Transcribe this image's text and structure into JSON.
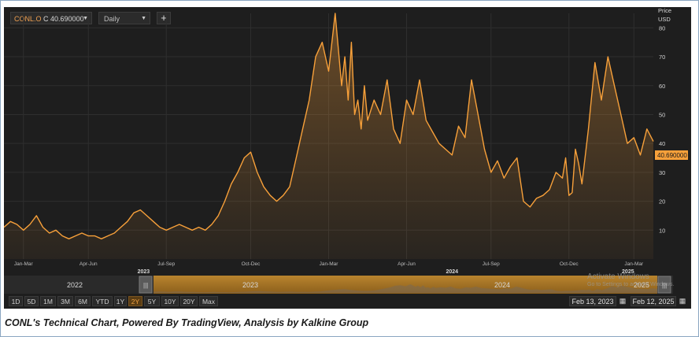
{
  "toolbar": {
    "ticker": "CONL.O",
    "quote": "C 40.690000",
    "interval": "Daily",
    "add_label": "+"
  },
  "price_axis": {
    "title": "Price",
    "currency": "USD",
    "last_price_label": "40.690000"
  },
  "navigator": {
    "years": [
      "2022",
      "2023",
      "2024",
      "2025"
    ],
    "divider_labels": [
      "2023",
      "2024",
      "2025"
    ]
  },
  "range_buttons": [
    "1D",
    "5D",
    "1M",
    "3M",
    "6M",
    "YTD",
    "1Y",
    "2Y",
    "5Y",
    "10Y",
    "20Y",
    "Max"
  ],
  "active_range": "2Y",
  "dates": {
    "from": "Feb 13, 2023",
    "to": "Feb 12, 2025"
  },
  "watermark": {
    "line1": "Activate Windows",
    "line2": "Go to Settings to activate Windows."
  },
  "caption": "CONL's Technical Chart, Powered By TradingView, Analysis by Kalkine Group",
  "colors": {
    "line": "#f7a03a",
    "background": "#1e1e1e",
    "grid": "#2e2e2e",
    "price_label_bg": "#f7a03a"
  },
  "chart_data": {
    "type": "area",
    "title": "",
    "xlabel": "",
    "ylabel": "Price USD",
    "ylim": [
      0,
      85
    ],
    "yticks": [
      10,
      20,
      30,
      40,
      50,
      60,
      70,
      80
    ],
    "grid": true,
    "last_value": 40.69,
    "x_tick_labels": [
      "Jan-Mar",
      "Apr-Jun",
      "Jul-Sep",
      "Oct-Dec",
      "Jan-Mar",
      "Apr-Jun",
      "Jul-Sep",
      "Oct-Dec",
      "Jan-Mar"
    ],
    "x_tick_positions": [
      0.03,
      0.13,
      0.25,
      0.38,
      0.5,
      0.62,
      0.75,
      0.87,
      0.97
    ],
    "year_labels": [
      {
        "label": "2023",
        "pos": 0.215
      },
      {
        "label": "2024",
        "pos": 0.69
      },
      {
        "label": "2025",
        "pos": 0.961
      }
    ],
    "x": [
      0.0,
      0.01,
      0.02,
      0.03,
      0.04,
      0.05,
      0.06,
      0.07,
      0.08,
      0.09,
      0.1,
      0.11,
      0.12,
      0.13,
      0.14,
      0.15,
      0.16,
      0.17,
      0.18,
      0.19,
      0.2,
      0.21,
      0.22,
      0.23,
      0.24,
      0.25,
      0.26,
      0.27,
      0.28,
      0.29,
      0.3,
      0.31,
      0.32,
      0.33,
      0.34,
      0.35,
      0.36,
      0.37,
      0.38,
      0.39,
      0.4,
      0.41,
      0.42,
      0.43,
      0.44,
      0.45,
      0.46,
      0.47,
      0.48,
      0.49,
      0.5,
      0.51,
      0.52,
      0.525,
      0.53,
      0.535,
      0.54,
      0.545,
      0.55,
      0.555,
      0.56,
      0.57,
      0.58,
      0.59,
      0.6,
      0.61,
      0.62,
      0.63,
      0.64,
      0.65,
      0.66,
      0.67,
      0.68,
      0.69,
      0.7,
      0.71,
      0.72,
      0.73,
      0.74,
      0.75,
      0.76,
      0.77,
      0.78,
      0.79,
      0.8,
      0.81,
      0.82,
      0.83,
      0.84,
      0.85,
      0.86,
      0.865,
      0.87,
      0.875,
      0.88,
      0.885,
      0.89,
      0.9,
      0.91,
      0.92,
      0.93,
      0.94,
      0.95,
      0.96,
      0.97,
      0.98,
      0.99,
      1.0
    ],
    "y": [
      11,
      13,
      12,
      10,
      12,
      15,
      11,
      9,
      10,
      8,
      7,
      8,
      9,
      8,
      8,
      7,
      8,
      9,
      11,
      13,
      16,
      17,
      15,
      13,
      11,
      10,
      11,
      12,
      11,
      10,
      11,
      10,
      12,
      15,
      20,
      26,
      30,
      35,
      37,
      30,
      25,
      22,
      20,
      22,
      25,
      35,
      45,
      55,
      70,
      75,
      65,
      85,
      60,
      70,
      55,
      75,
      50,
      55,
      45,
      60,
      48,
      55,
      50,
      62,
      45,
      40,
      55,
      50,
      62,
      48,
      44,
      40,
      38,
      36,
      46,
      42,
      62,
      50,
      38,
      30,
      34,
      28,
      32,
      35,
      20,
      18,
      21,
      22,
      24,
      30,
      28,
      35,
      22,
      23,
      38,
      33,
      26,
      45,
      68,
      55,
      70,
      60,
      50,
      40,
      42,
      36,
      45,
      40.69
    ]
  }
}
